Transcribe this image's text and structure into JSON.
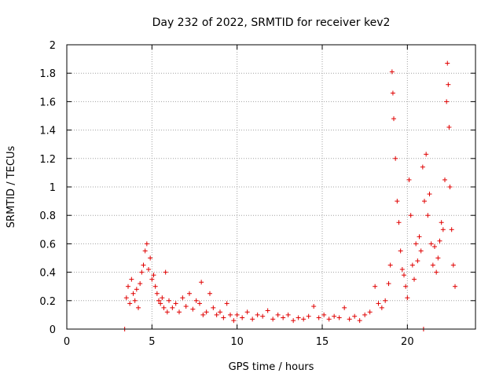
{
  "chart_data": {
    "type": "scatter",
    "title": "Day 232 of 2022, SRMTID for receiver kev2",
    "xlabel": "GPS time / hours",
    "ylabel": "SRMTID / TECUs",
    "xlim": [
      0,
      24
    ],
    "ylim": [
      0,
      2
    ],
    "grid": true,
    "marker": "+",
    "color": "#e00000",
    "x_ticks": [
      0,
      5,
      10,
      15,
      20
    ],
    "x_tick_labels": [
      "0",
      "5",
      "10",
      "15",
      "20"
    ],
    "y_ticks": [
      0,
      0.2,
      0.4,
      0.6,
      0.8,
      1,
      1.2,
      1.4,
      1.6,
      1.8,
      2
    ],
    "y_tick_labels": [
      "0",
      "0.2",
      "0.4",
      "0.6",
      "0.8",
      "1",
      "1.2",
      "1.4",
      "1.6",
      "1.8",
      "2"
    ],
    "series": [
      {
        "name": "kev2",
        "points": [
          [
            3.4,
            0.0
          ],
          [
            20.95,
            0.0
          ],
          [
            3.5,
            0.22
          ],
          [
            3.6,
            0.3
          ],
          [
            3.7,
            0.18
          ],
          [
            3.8,
            0.35
          ],
          [
            3.9,
            0.25
          ],
          [
            4.0,
            0.2
          ],
          [
            4.1,
            0.28
          ],
          [
            4.2,
            0.15
          ],
          [
            4.3,
            0.32
          ],
          [
            4.4,
            0.4
          ],
          [
            4.5,
            0.45
          ],
          [
            4.6,
            0.55
          ],
          [
            4.7,
            0.6
          ],
          [
            4.8,
            0.42
          ],
          [
            4.9,
            0.5
          ],
          [
            5.0,
            0.35
          ],
          [
            5.1,
            0.38
          ],
          [
            5.2,
            0.3
          ],
          [
            5.3,
            0.25
          ],
          [
            5.4,
            0.2
          ],
          [
            5.5,
            0.18
          ],
          [
            5.6,
            0.22
          ],
          [
            5.7,
            0.15
          ],
          [
            5.8,
            0.4
          ],
          [
            5.9,
            0.12
          ],
          [
            6.0,
            0.2
          ],
          [
            6.2,
            0.15
          ],
          [
            6.4,
            0.18
          ],
          [
            6.6,
            0.12
          ],
          [
            6.8,
            0.22
          ],
          [
            7.0,
            0.16
          ],
          [
            7.2,
            0.25
          ],
          [
            7.4,
            0.14
          ],
          [
            7.6,
            0.2
          ],
          [
            7.8,
            0.18
          ],
          [
            7.9,
            0.33
          ],
          [
            8.0,
            0.1
          ],
          [
            8.2,
            0.12
          ],
          [
            8.4,
            0.25
          ],
          [
            8.6,
            0.15
          ],
          [
            8.8,
            0.1
          ],
          [
            9.0,
            0.12
          ],
          [
            9.2,
            0.08
          ],
          [
            9.4,
            0.18
          ],
          [
            9.6,
            0.1
          ],
          [
            9.8,
            0.06
          ],
          [
            10.0,
            0.1
          ],
          [
            10.3,
            0.08
          ],
          [
            10.6,
            0.12
          ],
          [
            10.9,
            0.07
          ],
          [
            11.2,
            0.1
          ],
          [
            11.5,
            0.09
          ],
          [
            11.8,
            0.13
          ],
          [
            12.1,
            0.07
          ],
          [
            12.4,
            0.1
          ],
          [
            12.7,
            0.08
          ],
          [
            13.0,
            0.1
          ],
          [
            13.3,
            0.06
          ],
          [
            13.6,
            0.08
          ],
          [
            13.9,
            0.07
          ],
          [
            14.2,
            0.09
          ],
          [
            14.5,
            0.16
          ],
          [
            14.8,
            0.08
          ],
          [
            15.1,
            0.1
          ],
          [
            15.4,
            0.07
          ],
          [
            15.7,
            0.09
          ],
          [
            16.0,
            0.08
          ],
          [
            16.3,
            0.15
          ],
          [
            16.6,
            0.07
          ],
          [
            16.9,
            0.09
          ],
          [
            17.2,
            0.06
          ],
          [
            17.5,
            0.1
          ],
          [
            17.8,
            0.12
          ],
          [
            18.1,
            0.3
          ],
          [
            18.3,
            0.18
          ],
          [
            18.5,
            0.15
          ],
          [
            18.7,
            0.2
          ],
          [
            18.9,
            0.32
          ],
          [
            19.0,
            0.45
          ],
          [
            19.1,
            1.81
          ],
          [
            19.15,
            1.66
          ],
          [
            19.2,
            1.48
          ],
          [
            19.3,
            1.2
          ],
          [
            19.4,
            0.9
          ],
          [
            19.5,
            0.75
          ],
          [
            19.6,
            0.55
          ],
          [
            19.7,
            0.42
          ],
          [
            19.8,
            0.38
          ],
          [
            19.9,
            0.3
          ],
          [
            20.0,
            0.22
          ],
          [
            20.1,
            1.05
          ],
          [
            20.2,
            0.8
          ],
          [
            20.3,
            0.45
          ],
          [
            20.4,
            0.35
          ],
          [
            20.5,
            0.6
          ],
          [
            20.6,
            0.48
          ],
          [
            20.7,
            0.65
          ],
          [
            20.8,
            0.55
          ],
          [
            20.9,
            1.14
          ],
          [
            21.0,
            0.9
          ],
          [
            21.1,
            1.23
          ],
          [
            21.2,
            0.8
          ],
          [
            21.3,
            0.95
          ],
          [
            21.4,
            0.6
          ],
          [
            21.5,
            0.45
          ],
          [
            21.6,
            0.58
          ],
          [
            21.7,
            0.4
          ],
          [
            21.8,
            0.5
          ],
          [
            21.9,
            0.62
          ],
          [
            22.0,
            0.75
          ],
          [
            22.1,
            0.7
          ],
          [
            22.2,
            1.05
          ],
          [
            22.3,
            1.6
          ],
          [
            22.35,
            1.87
          ],
          [
            22.4,
            1.72
          ],
          [
            22.45,
            1.42
          ],
          [
            22.5,
            1.0
          ],
          [
            22.6,
            0.7
          ],
          [
            22.7,
            0.45
          ],
          [
            22.8,
            0.3
          ]
        ]
      }
    ]
  }
}
